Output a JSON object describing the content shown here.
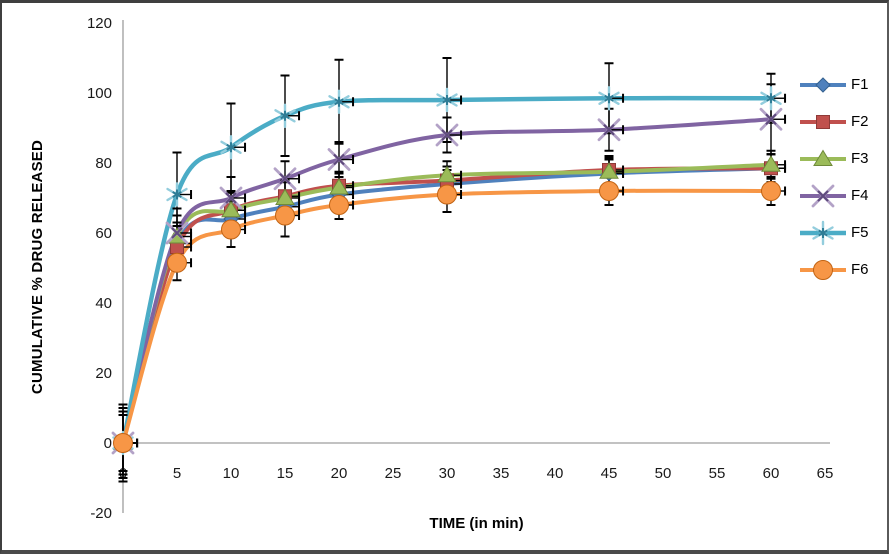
{
  "chart_data": {
    "type": "line",
    "title": "",
    "xlabel": "TIME (in min)",
    "ylabel": "CUMULATIVE % DRUG RELEASED",
    "xlim": [
      0,
      65
    ],
    "ylim": [
      -20,
      120
    ],
    "x_ticks": [
      0,
      5,
      10,
      15,
      20,
      25,
      30,
      35,
      40,
      45,
      50,
      55,
      60,
      65
    ],
    "y_ticks": [
      -20,
      0,
      20,
      40,
      60,
      80,
      100,
      120
    ],
    "grid": false,
    "legend_position": "right",
    "x": [
      0,
      5,
      10,
      15,
      20,
      30,
      45,
      60
    ],
    "xerr": 1.3,
    "error_bar_color": "#000000",
    "series": [
      {
        "name": "F1",
        "marker": "diamond",
        "color": "#4F81BD",
        "edge": "#35618f",
        "light": "#95B3D7",
        "width": 4,
        "values": [
          0,
          57,
          64,
          67.5,
          71,
          74,
          77,
          78.5
        ],
        "yerr": [
          8,
          6,
          5,
          4,
          4,
          4,
          4,
          4
        ]
      },
      {
        "name": "F2",
        "marker": "square",
        "color": "#C0504D",
        "edge": "#8f3a38",
        "light": "#D99694",
        "width": 4,
        "values": [
          0,
          56,
          66.5,
          70.5,
          73.5,
          75,
          78,
          78.5
        ],
        "yerr": [
          8,
          6,
          5,
          4,
          4,
          4,
          4,
          4
        ]
      },
      {
        "name": "F3",
        "marker": "triangle",
        "color": "#9BBB59",
        "edge": "#6f8a3a",
        "light": "#C3D69B",
        "width": 4,
        "values": [
          0,
          59,
          66.5,
          70,
          73,
          76.5,
          77.5,
          79.5
        ],
        "yerr": [
          9,
          6,
          5,
          5,
          4,
          4,
          4,
          4
        ]
      },
      {
        "name": "F4",
        "marker": "x",
        "color": "#8064A2",
        "edge": "#5f4a7d",
        "light": "#B3A2C7",
        "width": 4,
        "values": [
          0,
          60,
          70,
          75.5,
          81,
          88,
          89.5,
          92.5
        ],
        "yerr": [
          10,
          7,
          6,
          5,
          5,
          5,
          6,
          10
        ]
      },
      {
        "name": "F5",
        "marker": "asterisk",
        "color": "#4BACC6",
        "edge": "#2f7d96",
        "light": "#93CDDD",
        "width": 4.5,
        "values": [
          0,
          71,
          84.5,
          93.5,
          97.5,
          98,
          98.5,
          98.5
        ],
        "yerr": [
          11,
          12,
          12.5,
          11.5,
          12,
          12,
          10,
          7
        ]
      },
      {
        "name": "F6",
        "marker": "circle",
        "color": "#F79646",
        "edge": "#c26414",
        "light": "#FAC090",
        "width": 4,
        "values": [
          0,
          51.5,
          61,
          65,
          68,
          71,
          72,
          72
        ],
        "yerr": [
          9,
          5,
          5,
          6,
          4,
          5,
          4,
          4
        ]
      }
    ]
  }
}
